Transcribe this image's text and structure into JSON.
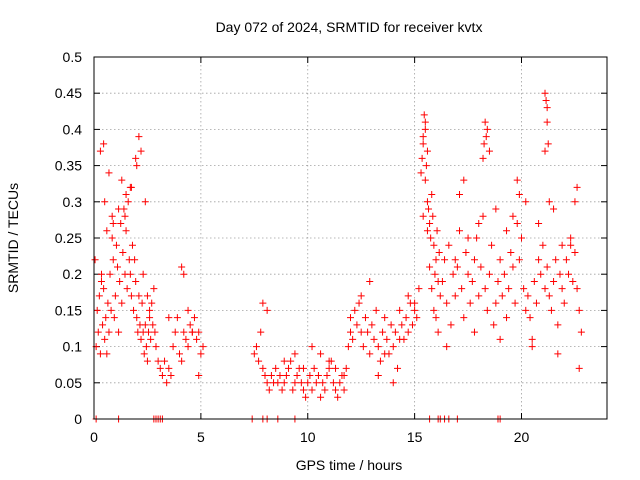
{
  "chart_data": {
    "type": "scatter",
    "title": "Day 072 of 2024, SRMTID for receiver kvtx",
    "xlabel": "GPS time / hours",
    "ylabel": "SRMTID / TECUs",
    "xlim": [
      0,
      24
    ],
    "ylim": [
      0,
      0.5
    ],
    "x_ticks": [
      0,
      5,
      10,
      15,
      20
    ],
    "x_tick_labels": [
      "0",
      "5",
      "10",
      "15",
      "20"
    ],
    "y_ticks": [
      0,
      0.05,
      0.1,
      0.15,
      0.2,
      0.25,
      0.3,
      0.35,
      0.4,
      0.45,
      0.5
    ],
    "y_tick_labels": [
      "0",
      "0.05",
      "0.1",
      "0.15",
      "0.2",
      "0.25",
      "0.3",
      "0.35",
      "0.4",
      "0.45",
      "0.5"
    ],
    "grid": true,
    "marker": "+",
    "color": "#ff0000",
    "series": [
      {
        "name": "SRMTID",
        "x": [
          0.05,
          0.1,
          0.15,
          0.2,
          0.25,
          0.3,
          0.35,
          0.4,
          0.45,
          0.5,
          0.55,
          0.6,
          0.65,
          0.7,
          0.75,
          0.8,
          0.85,
          0.9,
          0.95,
          1.0,
          1.05,
          1.1,
          1.15,
          1.2,
          1.25,
          1.3,
          1.35,
          1.4,
          1.45,
          1.5,
          1.55,
          1.6,
          1.65,
          1.7,
          1.75,
          1.8,
          1.85,
          1.9,
          1.95,
          2.0,
          2.05,
          2.1,
          2.15,
          2.2,
          2.25,
          2.3,
          2.35,
          2.4,
          2.45,
          2.5,
          2.55,
          2.6,
          2.65,
          2.7,
          2.75,
          2.8,
          2.85,
          2.9,
          3.0,
          3.1,
          3.2,
          3.3,
          3.4,
          3.5,
          3.6,
          3.7,
          3.8,
          3.9,
          4.0,
          4.1,
          4.2,
          4.3,
          4.4,
          4.5,
          4.6,
          4.7,
          4.8,
          4.9,
          5.0,
          5.1,
          0.3,
          0.45,
          0.5,
          0.7,
          0.9,
          1.3,
          1.5,
          1.7,
          2.0,
          2.1,
          2.2,
          2.4,
          2.6,
          0.35,
          0.6,
          0.85,
          1.15,
          1.45,
          1.75,
          1.95,
          2.3,
          2.5,
          4.1,
          4.2,
          3.5,
          4.4,
          4.6,
          4.9,
          7.5,
          7.6,
          7.7,
          7.8,
          7.9,
          8.0,
          8.1,
          8.2,
          8.3,
          8.4,
          8.5,
          8.6,
          8.7,
          8.8,
          8.9,
          9.0,
          9.1,
          9.2,
          9.3,
          9.4,
          9.5,
          9.6,
          9.7,
          9.8,
          9.9,
          10.0,
          10.1,
          10.2,
          10.3,
          10.4,
          10.5,
          10.6,
          10.7,
          10.8,
          10.9,
          11.0,
          11.1,
          11.2,
          11.3,
          11.4,
          11.5,
          11.6,
          11.7,
          11.8,
          11.9,
          12.0,
          7.9,
          8.1,
          8.9,
          9.4,
          9.8,
          10.2,
          10.6,
          11.0,
          11.3,
          11.7,
          12.0,
          12.1,
          12.2,
          12.3,
          12.4,
          12.5,
          12.6,
          12.7,
          12.8,
          12.9,
          13.0,
          13.1,
          13.2,
          13.3,
          13.4,
          13.5,
          13.6,
          13.7,
          13.8,
          13.9,
          14.0,
          14.1,
          14.2,
          14.3,
          14.4,
          14.5,
          14.6,
          14.7,
          14.8,
          14.9,
          15.0,
          15.1,
          15.2,
          12.5,
          12.9,
          13.3,
          13.6,
          14.0,
          14.3,
          14.7,
          15.0,
          15.3,
          15.35,
          15.4,
          15.45,
          15.5,
          15.55,
          15.6,
          15.65,
          15.7,
          15.75,
          15.8,
          15.85,
          15.9,
          15.95,
          16.0,
          16.05,
          16.1,
          16.15,
          16.2,
          15.4,
          15.5,
          15.6,
          15.5,
          15.4,
          15.6,
          15.7,
          15.8,
          15.9,
          16.0,
          16.1,
          16.3,
          16.4,
          16.5,
          16.6,
          16.7,
          16.8,
          16.9,
          17.0,
          17.1,
          17.2,
          17.3,
          17.4,
          17.5,
          17.6,
          17.7,
          17.8,
          17.9,
          18.0,
          18.1,
          18.2,
          18.3,
          18.4,
          18.5,
          18.6,
          18.7,
          18.8,
          18.9,
          19.0,
          19.1,
          19.2,
          19.3,
          19.4,
          19.5,
          19.6,
          19.7,
          19.8,
          19.9,
          20.0,
          20.1,
          20.2,
          20.3,
          20.4,
          20.5,
          20.6,
          20.7,
          20.8,
          20.9,
          21.0,
          21.1,
          21.2,
          21.3,
          21.4,
          21.5,
          21.6,
          21.7,
          21.8,
          21.9,
          22.0,
          22.1,
          22.2,
          22.3,
          22.4,
          22.5,
          22.6,
          22.7,
          22.8,
          17.1,
          17.3,
          18.2,
          18.25,
          18.3,
          18.35,
          18.4,
          18.5,
          19.8,
          19.9,
          21.1,
          21.15,
          21.2,
          21.25,
          21.1,
          21.2,
          21.3,
          22.5,
          22.6,
          16.9,
          17.5,
          18.0,
          18.8,
          19.3,
          19.6,
          20.2,
          20.8,
          21.5,
          21.9,
          22.3,
          16.5,
          17.8,
          19.0,
          20.5,
          21.7,
          22.7,
          0.1,
          1.15,
          2.8,
          2.9,
          3.0,
          3.1,
          3.2,
          7.4,
          7.9,
          8.1,
          8.6,
          9.4,
          15.7,
          16.1,
          16.2,
          16.4,
          16.6,
          17.0,
          18.9,
          19.0
        ],
        "y": [
          0.22,
          0.1,
          0.15,
          0.12,
          0.17,
          0.09,
          0.2,
          0.13,
          0.18,
          0.11,
          0.14,
          0.09,
          0.16,
          0.12,
          0.2,
          0.15,
          0.25,
          0.22,
          0.14,
          0.17,
          0.24,
          0.21,
          0.12,
          0.19,
          0.27,
          0.16,
          0.23,
          0.29,
          0.2,
          0.26,
          0.18,
          0.3,
          0.22,
          0.2,
          0.17,
          0.24,
          0.15,
          0.22,
          0.19,
          0.14,
          0.12,
          0.17,
          0.13,
          0.11,
          0.16,
          0.12,
          0.09,
          0.13,
          0.1,
          0.08,
          0.12,
          0.14,
          0.11,
          0.16,
          0.13,
          0.18,
          0.12,
          0.1,
          0.08,
          0.07,
          0.06,
          0.08,
          0.05,
          0.07,
          0.06,
          0.1,
          0.12,
          0.14,
          0.09,
          0.08,
          0.12,
          0.11,
          0.1,
          0.13,
          0.12,
          0.14,
          0.11,
          0.12,
          0.09,
          0.1,
          0.37,
          0.38,
          0.3,
          0.34,
          0.27,
          0.33,
          0.31,
          0.32,
          0.35,
          0.39,
          0.37,
          0.3,
          0.15,
          0.19,
          0.26,
          0.28,
          0.29,
          0.28,
          0.32,
          0.36,
          0.2,
          0.17,
          0.21,
          0.2,
          0.14,
          0.15,
          0.12,
          0.06,
          0.09,
          0.1,
          0.08,
          0.12,
          0.07,
          0.06,
          0.05,
          0.04,
          0.06,
          0.05,
          0.07,
          0.05,
          0.06,
          0.04,
          0.05,
          0.06,
          0.07,
          0.08,
          0.04,
          0.05,
          0.06,
          0.07,
          0.05,
          0.04,
          0.03,
          0.05,
          0.06,
          0.04,
          0.07,
          0.05,
          0.06,
          0.03,
          0.05,
          0.04,
          0.06,
          0.07,
          0.08,
          0.05,
          0.04,
          0.03,
          0.05,
          0.06,
          0.04,
          0.07,
          0.1,
          0.12,
          0.16,
          0.15,
          0.08,
          0.09,
          0.07,
          0.1,
          0.09,
          0.08,
          0.07,
          0.06,
          0.14,
          0.11,
          0.15,
          0.13,
          0.16,
          0.12,
          0.1,
          0.14,
          0.12,
          0.09,
          0.13,
          0.11,
          0.15,
          0.1,
          0.08,
          0.12,
          0.14,
          0.11,
          0.09,
          0.13,
          0.1,
          0.12,
          0.07,
          0.15,
          0.13,
          0.11,
          0.14,
          0.12,
          0.16,
          0.13,
          0.15,
          0.14,
          0.18,
          0.17,
          0.19,
          0.06,
          0.09,
          0.05,
          0.11,
          0.17,
          0.16,
          0.34,
          0.36,
          0.38,
          0.42,
          0.4,
          0.35,
          0.3,
          0.29,
          0.27,
          0.25,
          0.31,
          0.28,
          0.24,
          0.2,
          0.22,
          0.26,
          0.19,
          0.23,
          0.17,
          0.39,
          0.41,
          0.37,
          0.33,
          0.28,
          0.26,
          0.21,
          0.18,
          0.15,
          0.14,
          0.12,
          0.19,
          0.22,
          0.16,
          0.24,
          0.13,
          0.2,
          0.17,
          0.21,
          0.26,
          0.18,
          0.14,
          0.23,
          0.2,
          0.16,
          0.19,
          0.22,
          0.25,
          0.17,
          0.21,
          0.28,
          0.18,
          0.15,
          0.2,
          0.24,
          0.13,
          0.16,
          0.19,
          0.22,
          0.17,
          0.2,
          0.14,
          0.18,
          0.23,
          0.21,
          0.16,
          0.27,
          0.22,
          0.25,
          0.18,
          0.15,
          0.17,
          0.14,
          0.11,
          0.19,
          0.16,
          0.22,
          0.2,
          0.24,
          0.18,
          0.21,
          0.17,
          0.15,
          0.19,
          0.22,
          0.13,
          0.2,
          0.18,
          0.16,
          0.22,
          0.2,
          0.24,
          0.19,
          0.23,
          0.18,
          0.15,
          0.12,
          0.31,
          0.33,
          0.36,
          0.38,
          0.41,
          0.39,
          0.4,
          0.37,
          0.33,
          0.31,
          0.45,
          0.44,
          0.43,
          0.38,
          0.37,
          0.41,
          0.3,
          0.3,
          0.32,
          0.22,
          0.25,
          0.27,
          0.29,
          0.26,
          0.28,
          0.3,
          0.27,
          0.29,
          0.24,
          0.25,
          0.1,
          0.12,
          0.11,
          0.1,
          0.09,
          0.07,
          0,
          0,
          0,
          0,
          0,
          0,
          0,
          0,
          0,
          0,
          0,
          0,
          0,
          0,
          0,
          0,
          0,
          0,
          0,
          0
        ]
      }
    ]
  }
}
